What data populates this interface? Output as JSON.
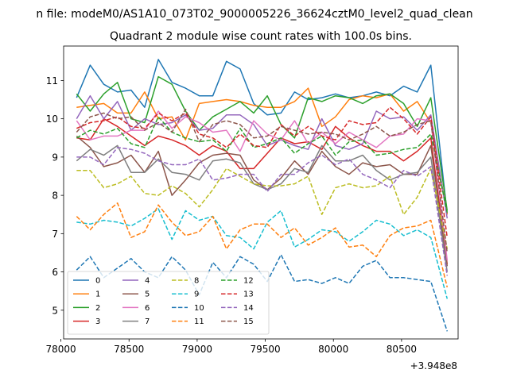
{
  "chart_data": {
    "type": "line",
    "suptitle": "n file: modeM0/AS1A10_073T02_9000005226_36624cztM0_level2_quad_clean",
    "title": "Quadrant 2 module wise count rates with 100.0s bins.",
    "xlabel": "",
    "ylabel": "",
    "x_offset_label": "+3.948e8",
    "xlim": [
      78020,
      80915
    ],
    "ylim": [
      4.25,
      11.9
    ],
    "x_ticks": [
      78000,
      78500,
      79000,
      79500,
      80000,
      80500
    ],
    "x_tick_labels": [
      "78000",
      "78500",
      "79000",
      "79500",
      "80000",
      "80500"
    ],
    "y_ticks": [
      5,
      6,
      7,
      8,
      9,
      10,
      11
    ],
    "y_tick_labels": [
      "5",
      "6",
      "7",
      "8",
      "9",
      "10",
      "11"
    ],
    "grid": false,
    "legend_location": "lower-left",
    "x": [
      78115,
      78215,
      78315,
      78415,
      78515,
      78615,
      78715,
      78815,
      78915,
      79015,
      79115,
      79215,
      79315,
      79415,
      79515,
      79615,
      79715,
      79815,
      79915,
      80015,
      80115,
      80215,
      80315,
      80415,
      80515,
      80615,
      80715,
      80835
    ],
    "series": [
      {
        "name": "0",
        "color": "#1f77b4",
        "dash": "solid",
        "values": [
          10.55,
          11.4,
          10.9,
          10.7,
          10.75,
          10.3,
          11.55,
          10.95,
          10.8,
          10.6,
          10.6,
          11.5,
          11.3,
          10.4,
          10.1,
          10.15,
          10.7,
          10.5,
          10.55,
          10.65,
          10.55,
          10.6,
          10.7,
          10.6,
          10.85,
          10.7,
          11.4,
          7.5
        ]
      },
      {
        "name": "1",
        "color": "#ff7f0e",
        "dash": "solid",
        "values": [
          10.3,
          10.35,
          10.4,
          10.15,
          10.15,
          10.7,
          10.0,
          10.05,
          9.45,
          10.4,
          10.45,
          10.5,
          10.45,
          10.35,
          10.3,
          10.3,
          10.45,
          10.8,
          9.8,
          10.05,
          10.5,
          10.6,
          10.55,
          10.65,
          10.2,
          10.45,
          9.9,
          7.5
        ]
      },
      {
        "name": "2",
        "color": "#2ca02c",
        "dash": "solid",
        "values": [
          10.65,
          10.2,
          10.65,
          10.95,
          10.0,
          9.9,
          11.1,
          10.9,
          10.2,
          9.7,
          10.05,
          10.25,
          10.45,
          10.15,
          10.6,
          9.85,
          9.5,
          10.55,
          10.45,
          10.6,
          10.55,
          10.4,
          10.6,
          10.65,
          10.4,
          9.8,
          10.55,
          7.6
        ]
      },
      {
        "name": "3",
        "color": "#d62728",
        "dash": "solid",
        "values": [
          9.5,
          9.45,
          10.0,
          9.8,
          9.55,
          9.3,
          9.55,
          9.45,
          9.3,
          9.05,
          9.3,
          9.15,
          8.7,
          8.7,
          9.1,
          9.5,
          9.35,
          9.4,
          9.2,
          9.8,
          9.5,
          9.3,
          9.15,
          9.15,
          8.9,
          9.15,
          9.5,
          6.2
        ]
      },
      {
        "name": "4",
        "color": "#9467bd",
        "dash": "solid",
        "values": [
          10.0,
          10.6,
          10.0,
          10.45,
          9.7,
          10.0,
          9.85,
          9.9,
          10.1,
          9.7,
          9.75,
          10.1,
          10.1,
          9.85,
          9.3,
          9.45,
          9.3,
          9.2,
          10.0,
          9.3,
          9.2,
          9.35,
          10.2,
          10.0,
          10.05,
          9.7,
          10.1,
          7.4
        ]
      },
      {
        "name": "5",
        "color": "#8c564b",
        "dash": "solid",
        "values": [
          9.55,
          9.25,
          8.75,
          8.85,
          9.05,
          8.6,
          9.15,
          8.0,
          8.4,
          8.85,
          9.05,
          9.1,
          9.05,
          8.4,
          8.15,
          8.45,
          8.9,
          8.55,
          9.15,
          8.75,
          8.55,
          8.85,
          8.75,
          8.8,
          8.55,
          8.55,
          9.3,
          6.15
        ]
      },
      {
        "name": "6",
        "color": "#e377c2",
        "dash": "solid",
        "values": [
          9.95,
          9.45,
          9.55,
          9.55,
          9.7,
          9.7,
          10.2,
          9.75,
          10.05,
          9.9,
          9.65,
          9.7,
          9.15,
          9.95,
          9.6,
          9.45,
          9.95,
          9.35,
          9.65,
          9.35,
          9.65,
          9.45,
          9.25,
          9.55,
          9.6,
          10.0,
          9.95,
          6.3
        ]
      },
      {
        "name": "7",
        "color": "#7f7f7f",
        "dash": "solid",
        "values": [
          8.9,
          9.2,
          9.05,
          9.3,
          8.6,
          8.6,
          8.95,
          8.6,
          8.55,
          8.4,
          8.9,
          8.95,
          8.85,
          8.3,
          8.15,
          8.3,
          8.7,
          8.6,
          9.3,
          8.9,
          8.9,
          9.05,
          8.65,
          8.4,
          8.55,
          8.6,
          9.0,
          6.0
        ]
      },
      {
        "name": "8",
        "color": "#bcbd22",
        "dash": "dashed",
        "values": [
          8.65,
          8.65,
          8.2,
          8.3,
          8.5,
          8.05,
          8.0,
          8.25,
          8.05,
          7.7,
          8.15,
          8.7,
          8.5,
          8.3,
          8.25,
          8.25,
          8.3,
          8.5,
          7.5,
          8.2,
          8.3,
          8.2,
          8.25,
          8.5,
          7.5,
          7.95,
          8.7,
          6.6
        ]
      },
      {
        "name": "9",
        "color": "#17becf",
        "dash": "dashed",
        "values": [
          7.3,
          7.25,
          7.35,
          7.3,
          7.2,
          7.4,
          7.65,
          6.85,
          7.6,
          7.35,
          7.45,
          6.95,
          6.9,
          6.6,
          7.3,
          7.6,
          6.65,
          6.85,
          7.1,
          7.05,
          6.8,
          7.05,
          7.35,
          7.25,
          6.95,
          7.1,
          6.9,
          5.3
        ]
      },
      {
        "name": "10",
        "color": "#1f77b4",
        "dash": "dashed",
        "values": [
          6.05,
          6.4,
          5.85,
          6.1,
          6.35,
          6.0,
          5.85,
          6.4,
          6.05,
          5.4,
          6.25,
          5.85,
          6.4,
          6.2,
          5.75,
          6.45,
          5.75,
          5.8,
          5.7,
          5.85,
          5.7,
          6.15,
          6.3,
          5.85,
          5.85,
          5.8,
          5.75,
          4.45
        ]
      },
      {
        "name": "11",
        "color": "#ff7f0e",
        "dash": "dashed",
        "values": [
          7.45,
          7.1,
          7.5,
          7.8,
          6.9,
          7.05,
          7.75,
          7.3,
          6.95,
          7.05,
          7.45,
          6.6,
          7.1,
          7.25,
          7.25,
          6.9,
          7.15,
          6.7,
          6.9,
          7.15,
          6.65,
          6.7,
          6.4,
          6.95,
          7.15,
          7.2,
          7.35,
          5.6
        ]
      },
      {
        "name": "12",
        "color": "#2ca02c",
        "dash": "dashed",
        "values": [
          9.5,
          9.7,
          9.6,
          9.75,
          9.35,
          9.25,
          10.05,
          9.65,
          9.5,
          9.4,
          9.45,
          9.15,
          9.75,
          9.25,
          9.35,
          9.5,
          9.1,
          9.35,
          9.55,
          9.05,
          9.4,
          9.45,
          9.05,
          9.1,
          9.2,
          9.25,
          9.6,
          7.55
        ]
      },
      {
        "name": "13",
        "color": "#d62728",
        "dash": "dashed",
        "values": [
          9.75,
          9.9,
          9.95,
          10.05,
          9.8,
          9.75,
          10.15,
          9.95,
          10.15,
          9.6,
          9.5,
          9.25,
          9.6,
          9.3,
          9.25,
          9.85,
          9.55,
          9.8,
          9.55,
          9.45,
          9.95,
          9.85,
          9.9,
          10.3,
          10.0,
          9.6,
          10.05,
          6.9
        ]
      },
      {
        "name": "14",
        "color": "#9467bd",
        "dash": "dashed",
        "values": [
          9.0,
          9.0,
          8.8,
          9.25,
          9.2,
          9.1,
          8.9,
          8.8,
          8.8,
          8.95,
          8.4,
          8.45,
          8.55,
          8.55,
          8.1,
          8.55,
          8.55,
          8.85,
          9.05,
          8.8,
          8.95,
          8.55,
          8.4,
          8.2,
          8.65,
          8.5,
          8.75,
          5.9
        ]
      },
      {
        "name": "15",
        "color": "#8c564b",
        "dash": "dashed",
        "values": [
          9.65,
          10.05,
          10.15,
          10.0,
          10.05,
          9.7,
          9.9,
          9.65,
          10.25,
          9.4,
          9.85,
          9.95,
          9.85,
          9.5,
          9.55,
          9.8,
          9.7,
          9.6,
          9.65,
          9.6,
          9.45,
          9.6,
          9.8,
          9.55,
          9.65,
          9.85,
          9.95,
          6.5
        ]
      }
    ]
  }
}
